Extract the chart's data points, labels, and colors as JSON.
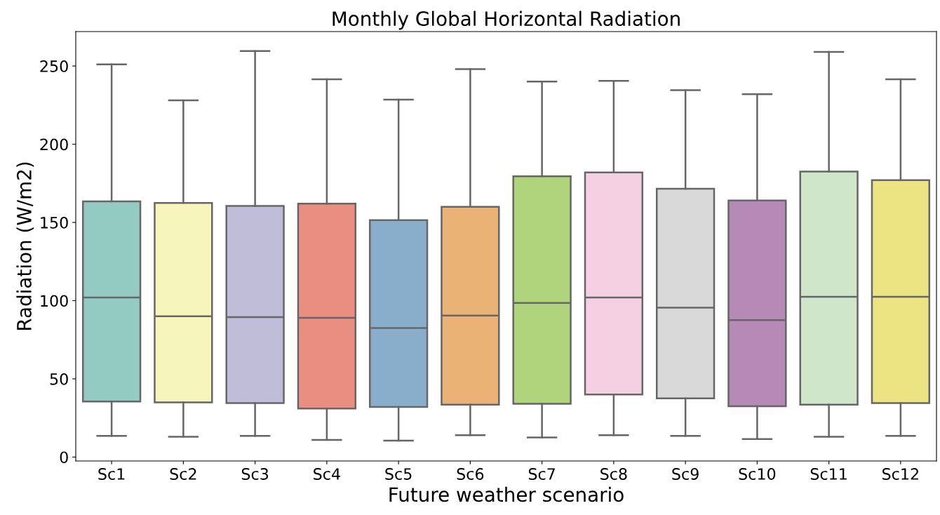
{
  "chart_data": {
    "type": "box",
    "title": "Monthly Global Horizontal Radiation",
    "xlabel": "Future weather scenario",
    "ylabel": "Radiation (W/m2)",
    "categories": [
      "Sc1",
      "Sc2",
      "Sc3",
      "Sc4",
      "Sc5",
      "Sc6",
      "Sc7",
      "Sc8",
      "Sc9",
      "Sc10",
      "Sc11",
      "Sc12"
    ],
    "colors": [
      "#93cbc2",
      "#f6f6bc",
      "#c0bdd8",
      "#eb8e82",
      "#88aecb",
      "#eab375",
      "#afd47b",
      "#f4d0e2",
      "#d9d9d9",
      "#b689b6",
      "#cfe6cb",
      "#ece383"
    ],
    "boxes": [
      {
        "low": 13.5,
        "q1": 35.5,
        "median": 102,
        "q3": 163.5,
        "high": 251
      },
      {
        "low": 13,
        "q1": 35,
        "median": 90,
        "q3": 162.5,
        "high": 228
      },
      {
        "low": 13.5,
        "q1": 34.5,
        "median": 89.5,
        "q3": 160.5,
        "high": 259.5
      },
      {
        "low": 11,
        "q1": 31,
        "median": 89,
        "q3": 162,
        "high": 241.5
      },
      {
        "low": 10.5,
        "q1": 32,
        "median": 82.5,
        "q3": 151.5,
        "high": 228.5
      },
      {
        "low": 14,
        "q1": 33.5,
        "median": 90.5,
        "q3": 160,
        "high": 248
      },
      {
        "low": 12.5,
        "q1": 34,
        "median": 98.5,
        "q3": 179.5,
        "high": 240
      },
      {
        "low": 14,
        "q1": 40,
        "median": 102,
        "q3": 182,
        "high": 240.5
      },
      {
        "low": 13.5,
        "q1": 37.5,
        "median": 95.5,
        "q3": 171.5,
        "high": 234.5
      },
      {
        "low": 11.5,
        "q1": 32.5,
        "median": 87.5,
        "q3": 164,
        "high": 232
      },
      {
        "low": 13,
        "q1": 33.5,
        "median": 102.5,
        "q3": 182.5,
        "high": 259
      },
      {
        "low": 13.5,
        "q1": 34.5,
        "median": 102.5,
        "q3": 177,
        "high": 241.5
      }
    ],
    "ylim": [
      -2.5,
      272
    ],
    "yticks": [
      0,
      50,
      100,
      150,
      200,
      250
    ],
    "grid": false
  }
}
